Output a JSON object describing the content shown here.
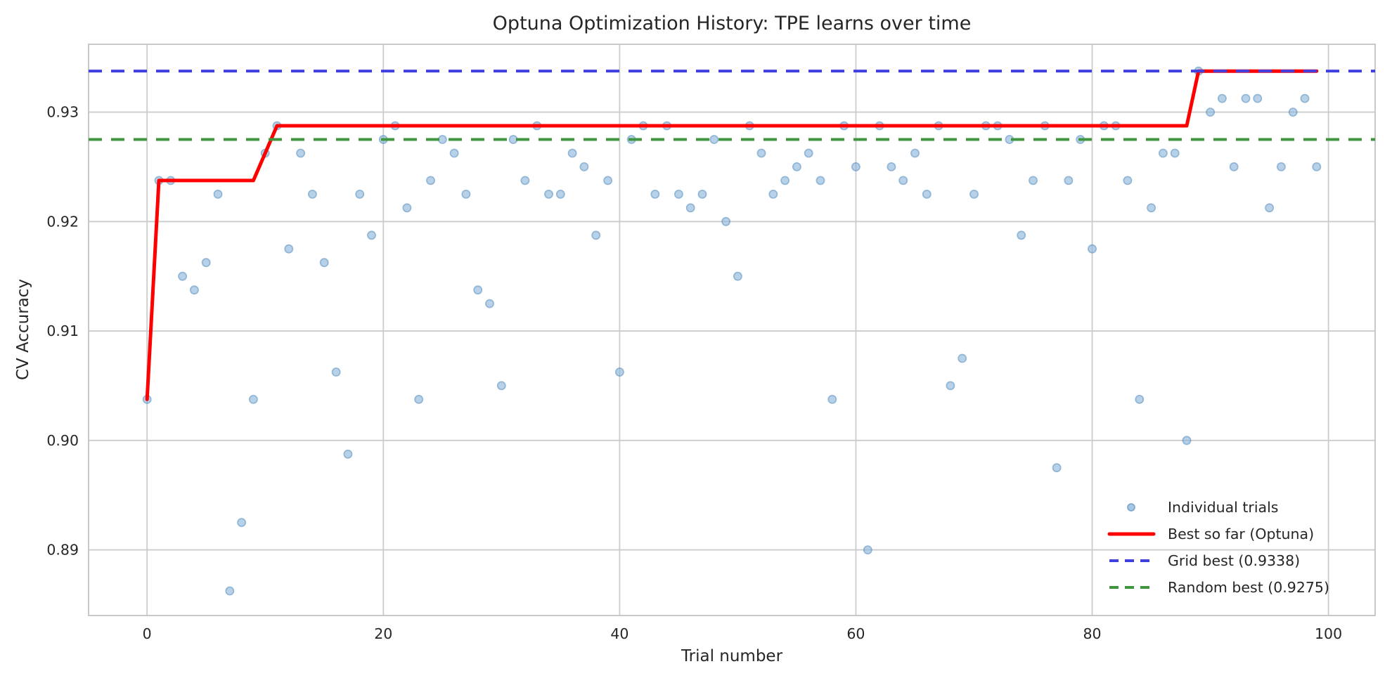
{
  "chart_data": {
    "type": "scatter",
    "title": "Optuna Optimization History: TPE learns over time",
    "xlabel": "Trial number",
    "ylabel": "CV Accuracy",
    "xlim": [
      -4.95,
      103.95
    ],
    "ylim": [
      0.884,
      0.9362
    ],
    "x_ticks": [
      0,
      20,
      40,
      60,
      80,
      100
    ],
    "y_ticks": [
      "0.89",
      "0.90",
      "0.91",
      "0.92",
      "0.93"
    ],
    "grid": true,
    "legend_position": "lower right",
    "colors": {
      "scatter_fill": "#88b4dc",
      "scatter_edge": "#4a86bb",
      "best_line": "#ff0000",
      "grid_best": "#4040e0",
      "random_best": "#3f963f",
      "gridline": "#cccccc",
      "axes_border": "#c8c8c8",
      "text": "#262626"
    },
    "series": [
      {
        "name": "Individual trials",
        "type": "scatter",
        "x_is_trial_index": true,
        "marker_opacity": 0.6,
        "values": [
          0.90375,
          0.92375,
          0.92375,
          0.915,
          0.91375,
          0.91625,
          0.9225,
          0.88625,
          0.8925,
          0.90375,
          0.92625,
          0.92875,
          0.9175,
          0.92625,
          0.9225,
          0.91625,
          0.90625,
          0.89875,
          0.9225,
          0.91875,
          0.9275,
          0.92875,
          0.92125,
          0.90375,
          0.92375,
          0.9275,
          0.92625,
          0.9225,
          0.91375,
          0.9125,
          0.905,
          0.9275,
          0.92375,
          0.92875,
          0.9225,
          0.9225,
          0.92625,
          0.925,
          0.91875,
          0.92375,
          0.90625,
          0.9275,
          0.92875,
          0.9225,
          0.92875,
          0.9225,
          0.92125,
          0.9225,
          0.9275,
          0.92,
          0.915,
          0.92875,
          0.92625,
          0.9225,
          0.92375,
          0.925,
          0.92625,
          0.92375,
          0.90375,
          0.92875,
          0.925,
          0.89,
          0.92875,
          0.925,
          0.92375,
          0.92625,
          0.9225,
          0.92875,
          0.905,
          0.9075,
          0.9225,
          0.92875,
          0.92875,
          0.9275,
          0.91875,
          0.92375,
          0.92875,
          0.8975,
          0.92375,
          0.9275,
          0.9175,
          0.92875,
          0.92875,
          0.92375,
          0.90375,
          0.92125,
          0.92625,
          0.92625,
          0.9,
          0.93375,
          0.93,
          0.93125,
          0.925,
          0.93125,
          0.93125,
          0.92125,
          0.925,
          0.93,
          0.93125,
          0.925
        ]
      },
      {
        "name": "Best so far (Optuna)",
        "type": "line",
        "derived_from": "running maximum of Individual trials",
        "points": [
          [
            0,
            0.90375
          ],
          [
            1,
            0.92375
          ],
          [
            9,
            0.92375
          ],
          [
            10,
            0.92625
          ],
          [
            11,
            0.92875
          ],
          [
            88,
            0.92875
          ],
          [
            89,
            0.93375
          ],
          [
            99,
            0.93375
          ]
        ]
      },
      {
        "name": "Grid best (0.9338)",
        "type": "hline",
        "y": 0.93375
      },
      {
        "name": "Random best (0.9275)",
        "type": "hline",
        "y": 0.9275
      }
    ]
  }
}
